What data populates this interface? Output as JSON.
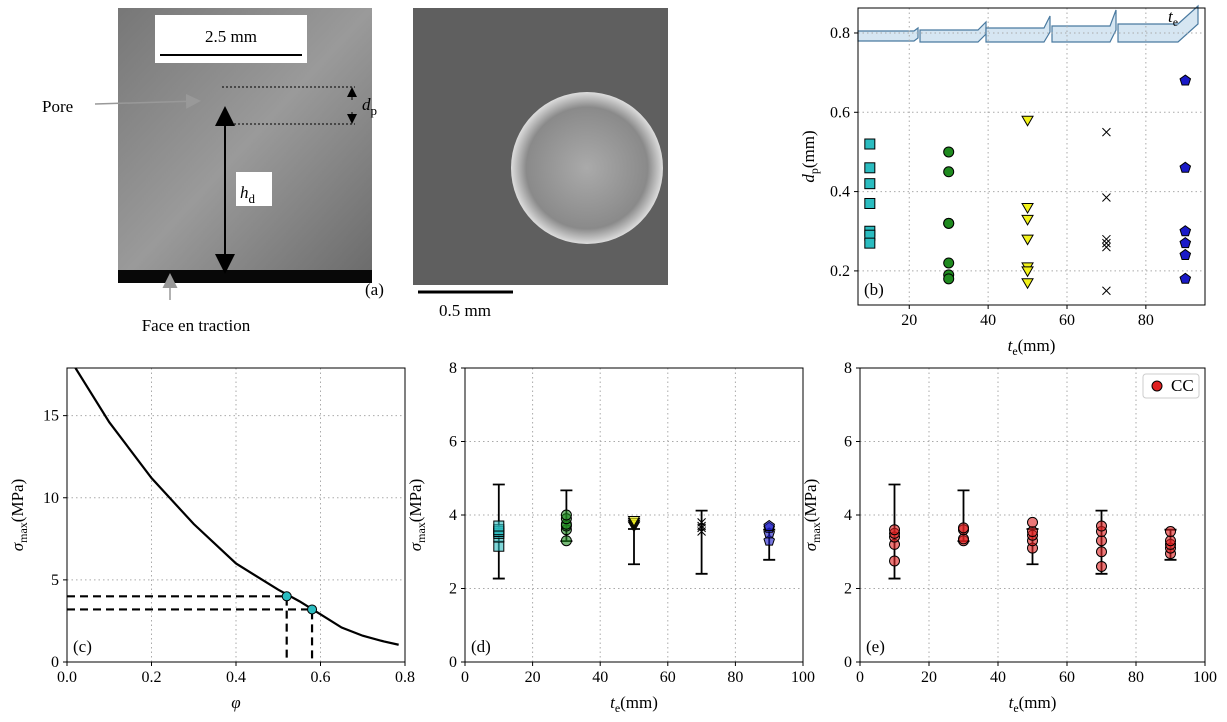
{
  "figure": {
    "panel_a": {
      "scale": "2.5 mm",
      "pore": "Pore",
      "dp_main": "d",
      "dp_sub": "p",
      "hd_main": "h",
      "hd_sub": "d",
      "face": "Face en traction",
      "label": "(a)"
    },
    "sem": {
      "scale": "0.5 mm"
    },
    "blocks": {
      "main": "t",
      "sub": "e"
    }
  },
  "chart_data": [
    {
      "type": "scatter",
      "label": "(b)",
      "x_label": {
        "main": "t",
        "sub": "e",
        "unit": "(mm)"
      },
      "y_label": {
        "main": "d",
        "sub": "p",
        "unit": "(mm)"
      },
      "xlim": [
        7,
        95
      ],
      "ylim": [
        0.114,
        0.863
      ],
      "xticks": [
        20,
        40,
        60,
        80
      ],
      "yticks": [
        0.2,
        0.4,
        0.6,
        0.8
      ],
      "grid": true,
      "series": [
        {
          "marker": "square",
          "color": "#2bbcc0",
          "x": [
            10,
            10,
            10,
            10,
            10,
            10,
            10
          ],
          "values": [
            0.52,
            0.46,
            0.42,
            0.37,
            0.3,
            0.29,
            0.27
          ]
        },
        {
          "marker": "circle",
          "color": "#1f8a1f",
          "x": [
            30,
            30,
            30,
            30,
            30,
            30,
            30
          ],
          "values": [
            0.5,
            0.45,
            0.32,
            0.32,
            0.22,
            0.19,
            0.18
          ]
        },
        {
          "marker": "triangle",
          "color": "#f2f21a",
          "x": [
            50,
            50,
            50,
            50,
            50,
            50,
            50
          ],
          "values": [
            0.58,
            0.36,
            0.33,
            0.28,
            0.21,
            0.2,
            0.17
          ]
        },
        {
          "marker": "x",
          "color": "#000000",
          "x": [
            70,
            70,
            70,
            70,
            70,
            70
          ],
          "values": [
            0.55,
            0.385,
            0.28,
            0.27,
            0.26,
            0.15
          ]
        },
        {
          "marker": "pentagon",
          "color": "#1a1ac8",
          "x": [
            90,
            90,
            90,
            90,
            90,
            90
          ],
          "values": [
            0.68,
            0.46,
            0.3,
            0.27,
            0.24,
            0.18
          ]
        }
      ]
    },
    {
      "type": "line",
      "label": "(c)",
      "x_label": {
        "main": "φ"
      },
      "y_label": {
        "main": "σ",
        "sub": "max",
        "unit": "(MPa)"
      },
      "xlim": [
        0,
        0.8
      ],
      "ylim": [
        0,
        17.9
      ],
      "xticks": [
        {
          "value": 0,
          "label": "0.0"
        },
        0.2,
        0.4,
        0.6,
        0.8
      ],
      "yticks": [
        0,
        5,
        10,
        15
      ],
      "grid": true,
      "x": [
        0.02,
        0.1,
        0.2,
        0.3,
        0.4,
        0.5,
        0.55,
        0.6,
        0.65,
        0.7,
        0.75,
        0.785
      ],
      "series": [
        {
          "color": "#000000",
          "values": [
            17.9,
            14.6,
            11.2,
            8.4,
            6.0,
            4.4,
            3.7,
            2.9,
            2.1,
            1.6,
            1.25,
            1.05
          ]
        }
      ],
      "highlight": {
        "color": "#2bbcc0",
        "x": [
          0.52,
          0.58
        ],
        "values": [
          4.0,
          3.2
        ]
      }
    },
    {
      "type": "scatter",
      "label": "(d)",
      "x_label": {
        "main": "t",
        "sub": "e",
        "unit": "(mm)"
      },
      "y_label": {
        "main": "σ",
        "sub": "max",
        "unit": "(MPa)"
      },
      "xlim": [
        0,
        100
      ],
      "ylim": [
        0,
        8
      ],
      "xticks": [
        0,
        20,
        40,
        60,
        80,
        100
      ],
      "yticks": [
        0,
        2,
        4,
        6,
        8
      ],
      "grid": true,
      "series": [
        {
          "marker": "square",
          "color": "#2bbcc0",
          "x": [
            10,
            10,
            10,
            10,
            10,
            10
          ],
          "values": [
            3.15,
            3.4,
            3.5,
            3.55,
            3.6,
            3.7
          ]
        },
        {
          "marker": "circle",
          "color": "#1f8a1f",
          "x": [
            30,
            30,
            30,
            30,
            30,
            30
          ],
          "values": [
            3.3,
            3.6,
            3.7,
            3.75,
            3.9,
            4.0
          ]
        },
        {
          "marker": "triangle",
          "color": "#f2f21a",
          "x": [
            50,
            50,
            50,
            50
          ],
          "values": [
            3.7,
            3.75,
            3.8,
            3.85
          ]
        },
        {
          "marker": "x",
          "color": "#000000",
          "x": [
            70,
            70,
            70,
            70
          ],
          "values": [
            3.55,
            3.65,
            3.7,
            3.8
          ]
        },
        {
          "marker": "pentagon",
          "color": "#1a1ac8",
          "x": [
            90,
            90,
            90,
            90
          ],
          "values": [
            3.3,
            3.5,
            3.65,
            3.7
          ]
        }
      ],
      "errorbars": {
        "color": "#000000",
        "x": [
          10,
          30,
          50,
          70,
          90
        ],
        "values": [
          3.55,
          3.98,
          3.14,
          3.26,
          3.19
        ],
        "errors": [
          1.28,
          0.69,
          0.48,
          0.86,
          0.41
        ]
      }
    },
    {
      "type": "scatter",
      "label": "(e)",
      "x_label": {
        "main": "t",
        "sub": "e",
        "unit": "(mm)"
      },
      "y_label": {
        "main": "σ",
        "sub": "max",
        "unit": "(MPa)"
      },
      "xlim": [
        0,
        100
      ],
      "ylim": [
        0,
        8
      ],
      "xticks": [
        0,
        20,
        40,
        60,
        80,
        100
      ],
      "yticks": [
        0,
        2,
        4,
        6,
        8
      ],
      "grid": true,
      "legend": "upper right",
      "series": [
        {
          "name": "CC",
          "marker": "circle",
          "color": "#e02020",
          "x": [
            10,
            10,
            10,
            10,
            10,
            30,
            30,
            30,
            30,
            50,
            50,
            50,
            50,
            50,
            70,
            70,
            70,
            70,
            70,
            90,
            90,
            90,
            90,
            90
          ],
          "values": [
            2.75,
            3.2,
            3.4,
            3.5,
            3.6,
            3.3,
            3.35,
            3.6,
            3.65,
            3.1,
            3.3,
            3.45,
            3.55,
            3.8,
            2.6,
            3.0,
            3.3,
            3.55,
            3.7,
            2.95,
            3.1,
            3.2,
            3.3,
            3.55
          ]
        }
      ],
      "errorbars": {
        "color": "#000000",
        "x": [
          10,
          30,
          50,
          70,
          90
        ],
        "values": [
          3.55,
          3.98,
          3.14,
          3.26,
          3.19
        ],
        "errors": [
          1.28,
          0.69,
          0.48,
          0.86,
          0.41
        ]
      }
    }
  ]
}
